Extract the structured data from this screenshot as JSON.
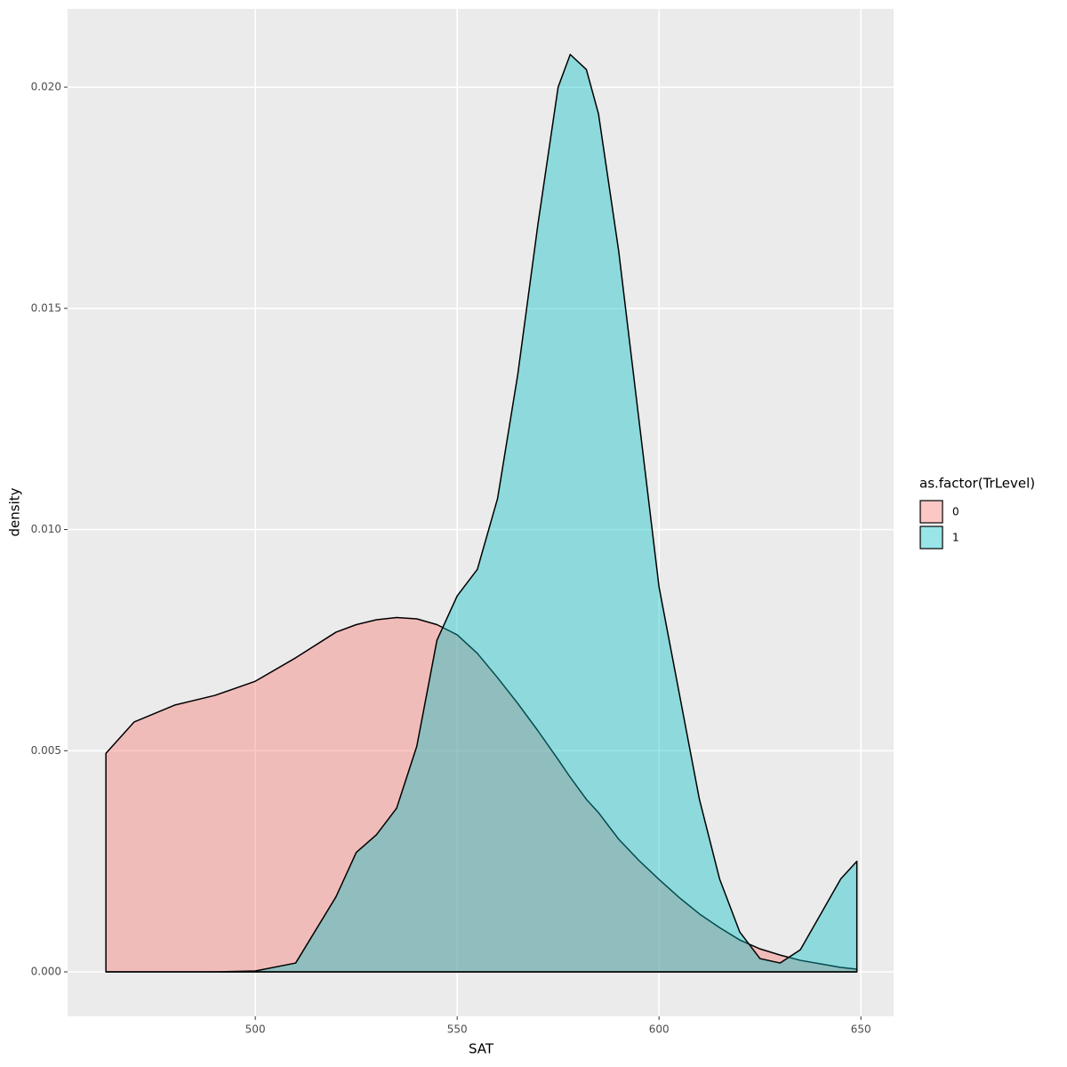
{
  "chart_data": {
    "type": "density",
    "xlabel": "SAT",
    "ylabel": "density",
    "legend_title": "as.factor(TrLevel)",
    "legend": "right",
    "grid": true,
    "x": [
      463,
      470,
      480,
      490,
      500,
      510,
      520,
      525,
      530,
      535,
      540,
      545,
      550,
      555,
      560,
      565,
      570,
      575,
      578,
      582,
      585,
      590,
      595,
      600,
      605,
      610,
      615,
      620,
      625,
      630,
      635,
      640,
      645,
      649
    ],
    "series": [
      {
        "name": "0",
        "color": "#F8766D",
        "values": [
          0.00494,
          0.00565,
          0.00603,
          0.00625,
          0.00657,
          0.0071,
          0.00768,
          0.00785,
          0.00796,
          0.00801,
          0.00798,
          0.00785,
          0.00762,
          0.0072,
          0.00665,
          0.00607,
          0.00545,
          0.0048,
          0.0044,
          0.0039,
          0.0036,
          0.003,
          0.00252,
          0.00209,
          0.00168,
          0.00131,
          0.001,
          0.00072,
          0.00052,
          0.00038,
          0.00026,
          0.00018,
          0.0001,
          6e-05
        ]
      },
      {
        "name": "1",
        "color": "#00BFC4",
        "values": [
          0,
          0,
          0,
          0,
          2e-05,
          0.0002,
          0.0017,
          0.0027,
          0.0031,
          0.0037,
          0.0051,
          0.0075,
          0.0085,
          0.0091,
          0.0107,
          0.0135,
          0.0169,
          0.02,
          0.02074,
          0.0204,
          0.0194,
          0.0163,
          0.0125,
          0.0087,
          0.0063,
          0.0039,
          0.0021,
          0.0009,
          0.0003,
          0.0002,
          0.0005,
          0.0013,
          0.0021,
          0.0025
        ]
      }
    ],
    "xlim": [
      453.5,
      658.1
    ],
    "xticks": [
      500,
      550,
      600,
      650
    ],
    "ylim": [
      -0.001005,
      0.02177
    ],
    "yticks": [
      {
        "value": 0,
        "label": "0.000"
      },
      {
        "value": 0.005,
        "label": "0.005"
      },
      {
        "value": 0.01,
        "label": "0.010"
      },
      {
        "value": 0.015,
        "label": "0.015"
      },
      {
        "value": 0.02,
        "label": "0.020"
      }
    ]
  }
}
